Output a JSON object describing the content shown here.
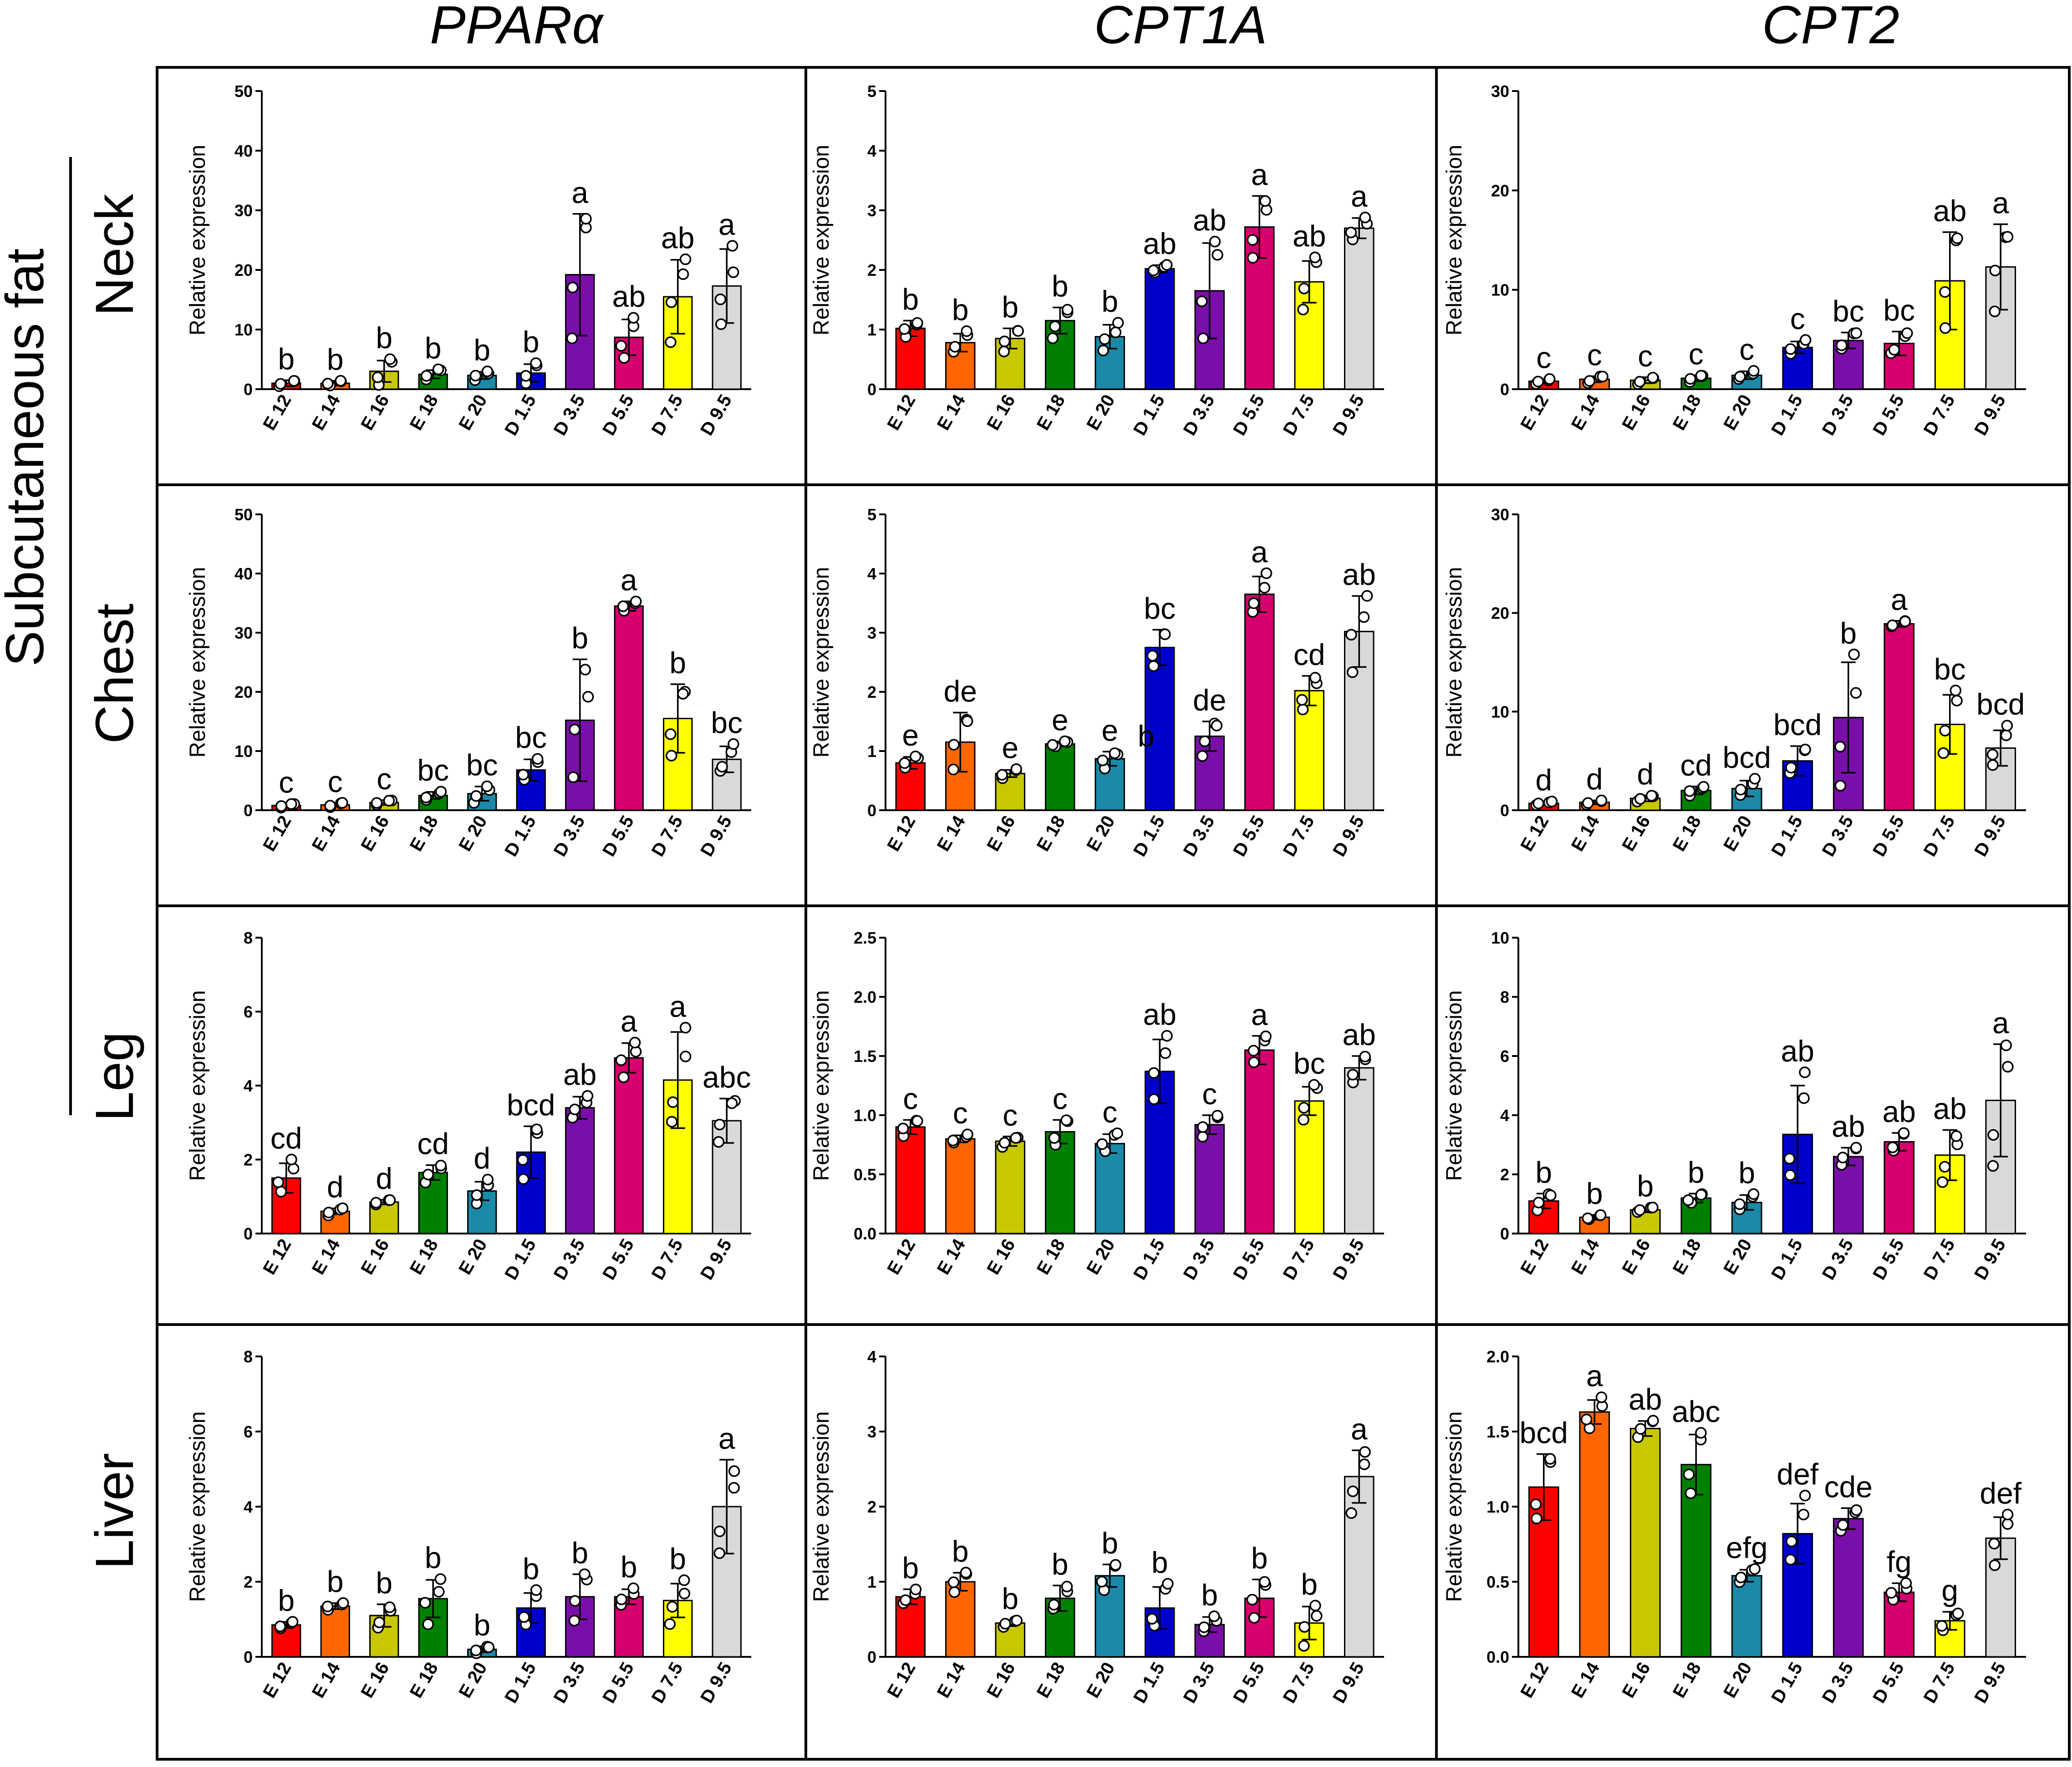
{
  "figure": {
    "column_titles": [
      "PPARα",
      "CPT1A",
      "CPT2"
    ],
    "row_labels": [
      "Neck",
      "Chest",
      "Leg",
      "Liver"
    ],
    "group_label": "Subcutaneous fat"
  },
  "colors": [
    "#ff0000",
    "#ff6600",
    "#c8c800",
    "#008000",
    "#1a8aa8",
    "#0000cc",
    "#7a0ea8",
    "#d6006e",
    "#ffff00",
    "#d9d9d9"
  ],
  "chart_data": [
    {
      "type": "bar",
      "row": "Neck",
      "gene": "PPARα",
      "ylabel": "Relative expression",
      "ylim": [
        0,
        50
      ],
      "yticks": [
        0,
        10,
        20,
        30,
        40,
        50
      ],
      "categories": [
        "E 12",
        "E 14",
        "E 16",
        "E 18",
        "E 20",
        "D 1.5",
        "D 3.5",
        "D 5.5",
        "D 7.5",
        "D 9.5"
      ],
      "values": [
        1,
        1,
        3,
        2.5,
        2.3,
        2.7,
        19.2,
        8.7,
        15.5,
        17.3
      ],
      "errors": [
        0.5,
        0.4,
        1.8,
        0.7,
        0.6,
        1.5,
        10.2,
        3,
        6.2,
        6.2
      ],
      "significance": [
        "b",
        "b",
        "b",
        "b",
        "b",
        "b",
        "a",
        "ab",
        "ab",
        "a"
      ]
    },
    {
      "type": "bar",
      "row": "Neck",
      "gene": "CPT1A",
      "ylabel": "Relative expression",
      "ylim": [
        0,
        5
      ],
      "yticks": [
        0,
        1,
        2,
        3,
        4,
        5
      ],
      "categories": [
        "E 12",
        "E 14",
        "E 16",
        "E 18",
        "E 20",
        "D 1.5",
        "D 3.5",
        "D 5.5",
        "D 7.5",
        "D 9.5"
      ],
      "values": [
        1.02,
        0.78,
        0.85,
        1.15,
        0.88,
        2.02,
        1.65,
        2.72,
        1.8,
        2.7
      ],
      "errors": [
        0.13,
        0.15,
        0.17,
        0.22,
        0.2,
        0.06,
        0.8,
        0.52,
        0.35,
        0.17
      ],
      "significance": [
        "b",
        "b",
        "b",
        "b",
        "b",
        "ab",
        "ab",
        "a",
        "ab",
        "a"
      ]
    },
    {
      "type": "bar",
      "row": "Neck",
      "gene": "CPT2",
      "ylabel": "Relative expression",
      "ylim": [
        0,
        30
      ],
      "yticks": [
        0,
        10,
        20,
        30
      ],
      "categories": [
        "E 12",
        "E 14",
        "E 16",
        "E 18",
        "E 20",
        "D 1.5",
        "D 3.5",
        "D 5.5",
        "D 7.5",
        "D 9.5"
      ],
      "values": [
        0.8,
        1,
        0.9,
        1.1,
        1.4,
        4.2,
        4.9,
        4.6,
        10.9,
        12.3
      ],
      "errors": [
        0.2,
        0.3,
        0.3,
        0.3,
        0.4,
        0.6,
        0.8,
        1.2,
        4.9,
        4.3
      ],
      "significance": [
        "c",
        "c",
        "c",
        "c",
        "c",
        "c",
        "bc",
        "bc",
        "ab",
        "a"
      ]
    },
    {
      "type": "bar",
      "row": "Chest",
      "gene": "PPARα",
      "ylabel": "Relative expression",
      "ylim": [
        0,
        50
      ],
      "yticks": [
        0,
        10,
        20,
        30,
        40,
        50
      ],
      "categories": [
        "E 12",
        "E 14",
        "E 16",
        "E 18",
        "E 20",
        "D 1.5",
        "D 3.5",
        "D 5.5",
        "D 7.5",
        "D 9.5"
      ],
      "values": [
        0.8,
        0.9,
        1.3,
        2.5,
        2.8,
        6.8,
        15.2,
        34.5,
        15.5,
        8.6
      ],
      "errors": [
        0.3,
        0.3,
        0.4,
        0.6,
        1.2,
        1.8,
        10.3,
        0.8,
        5.8,
        2.2
      ],
      "significance": [
        "c",
        "c",
        "c",
        "bc",
        "bc",
        "bc",
        "b",
        "a",
        "b",
        "bc"
      ]
    },
    {
      "type": "bar",
      "row": "Chest",
      "gene": "CPT1A",
      "ylabel": "Relative expression",
      "ylim": [
        0,
        5
      ],
      "yticks": [
        0,
        1,
        2,
        3,
        4,
        5
      ],
      "categories": [
        "E 12",
        "E 14",
        "E 16",
        "E 18",
        "E 20",
        "D 1.5",
        "D 3.5",
        "D 5.5",
        "D 7.5",
        "D 9.5"
      ],
      "values": [
        0.8,
        1.15,
        0.62,
        1.12,
        0.87,
        2.75,
        1.25,
        3.65,
        2.02,
        3.02
      ],
      "errors": [
        0.1,
        0.5,
        0.06,
        0.04,
        0.12,
        0.3,
        0.25,
        0.3,
        0.25,
        0.6
      ],
      "significance": [
        "e",
        "de",
        "e",
        "e",
        "e",
        "bc",
        "de",
        "a",
        "cd",
        "ab"
      ],
      "extra_labels": [
        {
          "category": "D 1.5",
          "text": "b",
          "y": 1.0
        }
      ]
    },
    {
      "type": "bar",
      "row": "Chest",
      "gene": "CPT2",
      "ylabel": "Relative expression",
      "ylim": [
        0,
        30
      ],
      "yticks": [
        0,
        10,
        20,
        30
      ],
      "categories": [
        "E 12",
        "E 14",
        "E 16",
        "E 18",
        "E 20",
        "D 1.5",
        "D 3.5",
        "D 5.5",
        "D 7.5",
        "D 9.5"
      ],
      "values": [
        0.7,
        0.8,
        1.2,
        2.0,
        2.2,
        5.0,
        9.4,
        18.9,
        8.7,
        6.3
      ],
      "errors": [
        0.2,
        0.2,
        0.3,
        0.4,
        0.8,
        1.5,
        5.6,
        0.3,
        3.0,
        1.8
      ],
      "significance": [
        "d",
        "d",
        "d",
        "cd",
        "bcd",
        "bcd",
        "b",
        "a",
        "bc",
        "bcd"
      ]
    },
    {
      "type": "bar",
      "row": "Leg",
      "gene": "PPARα",
      "ylabel": "Relative expression",
      "ylim": [
        0,
        8
      ],
      "yticks": [
        0,
        2,
        4,
        6,
        8
      ],
      "categories": [
        "E 12",
        "E 14",
        "E 16",
        "E 18",
        "E 20",
        "D 1.5",
        "D 3.5",
        "D 5.5",
        "D 7.5",
        "D 9.5"
      ],
      "values": [
        1.5,
        0.6,
        0.85,
        1.65,
        1.15,
        2.2,
        3.4,
        4.75,
        4.15,
        3.05
      ],
      "errors": [
        0.4,
        0.08,
        0.06,
        0.2,
        0.25,
        0.7,
        0.3,
        0.4,
        1.3,
        0.6
      ],
      "significance": [
        "cd",
        "d",
        "d",
        "cd",
        "d",
        "bcd",
        "ab",
        "a",
        "a",
        "abc"
      ]
    },
    {
      "type": "bar",
      "row": "Leg",
      "gene": "CPT1A",
      "ylabel": "Relative expression",
      "ylim": [
        0,
        2.5
      ],
      "yticks": [
        0,
        0.5,
        1,
        1.5,
        2,
        2.5
      ],
      "categories": [
        "E 12",
        "E 14",
        "E 16",
        "E 18",
        "E 20",
        "D 1.5",
        "D 3.5",
        "D 5.5",
        "D 7.5",
        "D 9.5"
      ],
      "values": [
        0.9,
        0.8,
        0.78,
        0.86,
        0.76,
        1.37,
        0.92,
        1.55,
        1.12,
        1.4
      ],
      "errors": [
        0.06,
        0.03,
        0.04,
        0.1,
        0.08,
        0.27,
        0.08,
        0.12,
        0.12,
        0.1
      ],
      "significance": [
        "c",
        "c",
        "c",
        "c",
        "c",
        "ab",
        "c",
        "a",
        "bc",
        "ab"
      ]
    },
    {
      "type": "bar",
      "row": "Leg",
      "gene": "CPT2",
      "ylabel": "Relative expression",
      "ylim": [
        0,
        10
      ],
      "yticks": [
        0,
        2,
        4,
        6,
        8,
        10
      ],
      "categories": [
        "E 12",
        "E 14",
        "E 16",
        "E 18",
        "E 20",
        "D 1.5",
        "D 3.5",
        "D 5.5",
        "D 7.5",
        "D 9.5"
      ],
      "values": [
        1.1,
        0.55,
        0.8,
        1.2,
        1.05,
        3.35,
        2.6,
        3.1,
        2.65,
        4.5
      ],
      "errors": [
        0.25,
        0.08,
        0.08,
        0.15,
        0.25,
        1.65,
        0.3,
        0.3,
        0.85,
        1.9
      ],
      "significance": [
        "b",
        "b",
        "b",
        "b",
        "b",
        "ab",
        "ab",
        "ab",
        "ab",
        "a"
      ]
    },
    {
      "type": "bar",
      "row": "Liver",
      "gene": "PPARα",
      "ylabel": "Relative expression",
      "ylim": [
        0,
        8
      ],
      "yticks": [
        0,
        2,
        4,
        6,
        8
      ],
      "categories": [
        "E 12",
        "E 14",
        "E 16",
        "E 18",
        "E 20",
        "D 1.5",
        "D 3.5",
        "D 5.5",
        "D 7.5",
        "D 9.5"
      ],
      "values": [
        0.85,
        1.35,
        1.1,
        1.55,
        0.2,
        1.3,
        1.6,
        1.6,
        1.5,
        4.0
      ],
      "errors": [
        0.08,
        0.08,
        0.3,
        0.5,
        0.08,
        0.4,
        0.6,
        0.2,
        0.45,
        1.25
      ],
      "significance": [
        "b",
        "b",
        "b",
        "b",
        "b",
        "b",
        "b",
        "b",
        "b",
        "a"
      ]
    },
    {
      "type": "bar",
      "row": "Liver",
      "gene": "CPT1A",
      "ylabel": "Relative expression",
      "ylim": [
        0,
        4
      ],
      "yticks": [
        0,
        1,
        2,
        3,
        4
      ],
      "categories": [
        "E 12",
        "E 14",
        "E 16",
        "E 18",
        "E 20",
        "D 1.5",
        "D 3.5",
        "D 5.5",
        "D 7.5",
        "D 9.5"
      ],
      "values": [
        0.8,
        1.0,
        0.45,
        0.78,
        1.08,
        0.65,
        0.43,
        0.78,
        0.45,
        2.4
      ],
      "errors": [
        0.1,
        0.12,
        0.04,
        0.17,
        0.15,
        0.28,
        0.1,
        0.25,
        0.22,
        0.35
      ],
      "significance": [
        "b",
        "b",
        "b",
        "b",
        "b",
        "b",
        "b",
        "b",
        "b",
        "a"
      ]
    },
    {
      "type": "bar",
      "row": "Liver",
      "gene": "CPT2",
      "ylabel": "Relative expression",
      "ylim": [
        0,
        2.0
      ],
      "yticks": [
        0,
        0.5,
        1,
        1.5,
        2
      ],
      "categories": [
        "E 12",
        "E 14",
        "E 16",
        "E 18",
        "E 20",
        "D 1.5",
        "D 3.5",
        "D 5.5",
        "D 7.5",
        "D 9.5"
      ],
      "values": [
        1.13,
        1.63,
        1.52,
        1.28,
        0.54,
        0.82,
        0.92,
        0.43,
        0.24,
        0.79
      ],
      "errors": [
        0.22,
        0.08,
        0.05,
        0.2,
        0.04,
        0.2,
        0.07,
        0.06,
        0.06,
        0.14
      ],
      "significance": [
        "bcd",
        "a",
        "ab",
        "abc",
        "efg",
        "def",
        "cde",
        "fg",
        "g",
        "def"
      ]
    }
  ]
}
